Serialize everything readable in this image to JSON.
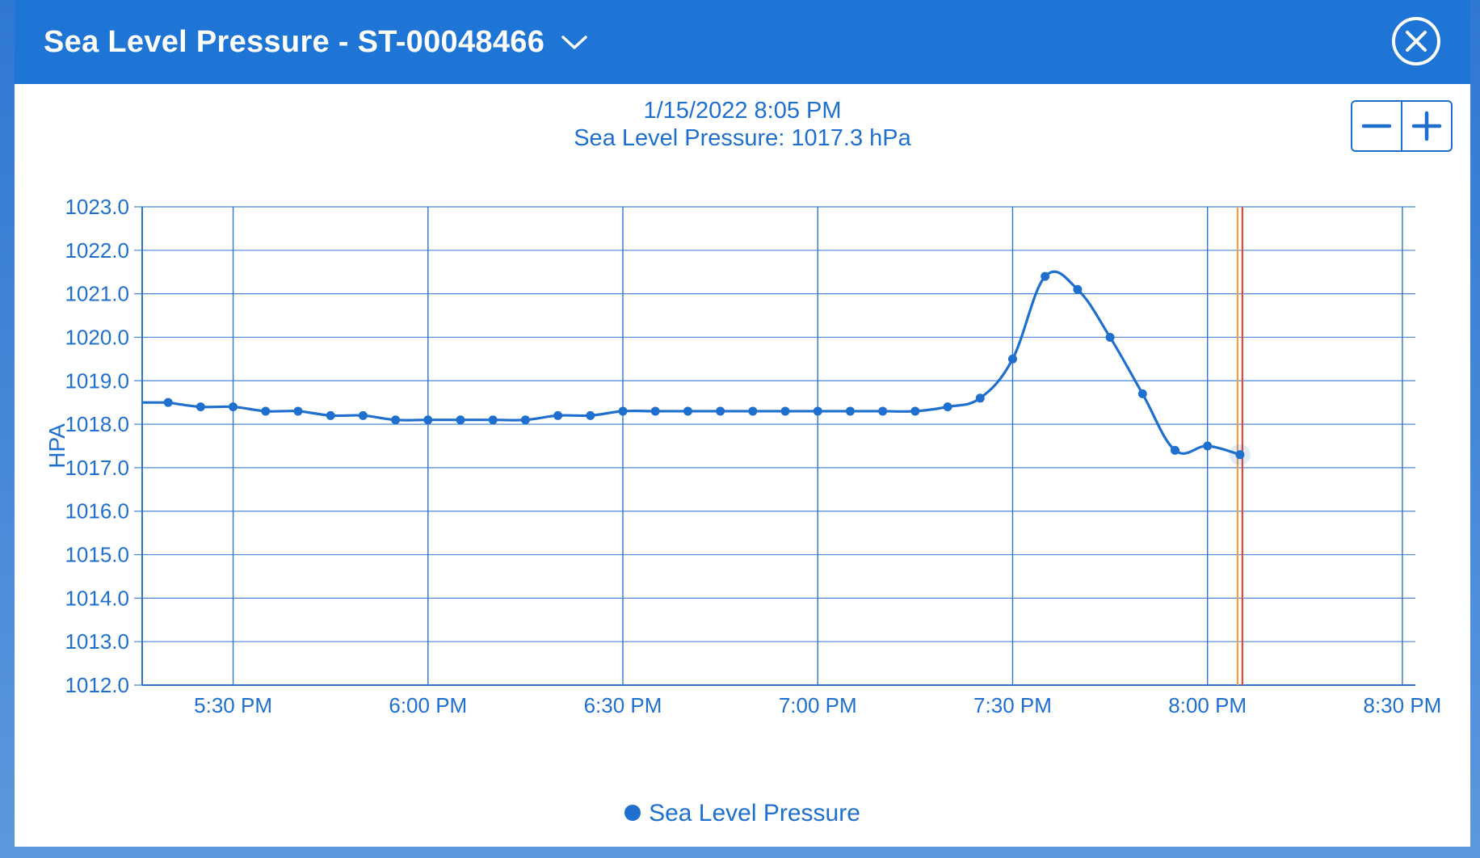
{
  "header": {
    "title": "Sea Level Pressure - ST-00048466",
    "title_dropdown_icon": "chevron-down-icon",
    "close_icon": "close-circle-icon"
  },
  "zoom": {
    "minus_icon": "minus-icon",
    "plus_icon": "plus-icon"
  },
  "tooltip": {
    "datetime": "1/15/2022 8:05 PM",
    "value_text": "Sea Level Pressure: 1017.3 hPa"
  },
  "colors": {
    "header": "#1e75d6",
    "series": "#1f6fcf",
    "grid": "#2b74cf",
    "cursor_orange": "#f0a040",
    "cursor_red": "#e8463a"
  },
  "chart_data": {
    "type": "line",
    "ylabel": "HPA",
    "ylim": [
      1012.0,
      1023.0
    ],
    "yticks": [
      "1012.0",
      "1013.0",
      "1014.0",
      "1015.0",
      "1016.0",
      "1017.0",
      "1018.0",
      "1019.0",
      "1020.0",
      "1021.0",
      "1022.0",
      "1023.0"
    ],
    "x_range_minutes": [
      "17:16",
      "20:32"
    ],
    "xticks": [
      {
        "time": "17:30",
        "label": "5:30 PM"
      },
      {
        "time": "18:00",
        "label": "6:00 PM"
      },
      {
        "time": "18:30",
        "label": "6:30 PM"
      },
      {
        "time": "19:00",
        "label": "7:00 PM"
      },
      {
        "time": "19:30",
        "label": "7:30 PM"
      },
      {
        "time": "20:00",
        "label": "8:00 PM"
      },
      {
        "time": "20:30",
        "label": "8:30 PM"
      }
    ],
    "cursor_time": "20:05",
    "grid": true,
    "legend_position": "bottom-center",
    "series": [
      {
        "name": "Sea Level Pressure",
        "points": [
          {
            "t": "17:20",
            "v": 1018.5
          },
          {
            "t": "17:25",
            "v": 1018.4
          },
          {
            "t": "17:30",
            "v": 1018.4
          },
          {
            "t": "17:35",
            "v": 1018.3
          },
          {
            "t": "17:40",
            "v": 1018.3
          },
          {
            "t": "17:45",
            "v": 1018.2
          },
          {
            "t": "17:50",
            "v": 1018.2
          },
          {
            "t": "17:55",
            "v": 1018.1
          },
          {
            "t": "18:00",
            "v": 1018.1
          },
          {
            "t": "18:05",
            "v": 1018.1
          },
          {
            "t": "18:10",
            "v": 1018.1
          },
          {
            "t": "18:15",
            "v": 1018.1
          },
          {
            "t": "18:20",
            "v": 1018.2
          },
          {
            "t": "18:25",
            "v": 1018.2
          },
          {
            "t": "18:30",
            "v": 1018.3
          },
          {
            "t": "18:35",
            "v": 1018.3
          },
          {
            "t": "18:40",
            "v": 1018.3
          },
          {
            "t": "18:45",
            "v": 1018.3
          },
          {
            "t": "18:50",
            "v": 1018.3
          },
          {
            "t": "18:55",
            "v": 1018.3
          },
          {
            "t": "19:00",
            "v": 1018.3
          },
          {
            "t": "19:05",
            "v": 1018.3
          },
          {
            "t": "19:10",
            "v": 1018.3
          },
          {
            "t": "19:15",
            "v": 1018.3
          },
          {
            "t": "19:20",
            "v": 1018.4
          },
          {
            "t": "19:25",
            "v": 1018.6
          },
          {
            "t": "19:30",
            "v": 1019.5
          },
          {
            "t": "19:35",
            "v": 1021.4
          },
          {
            "t": "19:40",
            "v": 1021.1
          },
          {
            "t": "19:45",
            "v": 1020.0
          },
          {
            "t": "19:50",
            "v": 1018.7
          },
          {
            "t": "19:55",
            "v": 1017.4
          },
          {
            "t": "20:00",
            "v": 1017.5
          },
          {
            "t": "20:05",
            "v": 1017.3
          }
        ]
      }
    ]
  }
}
